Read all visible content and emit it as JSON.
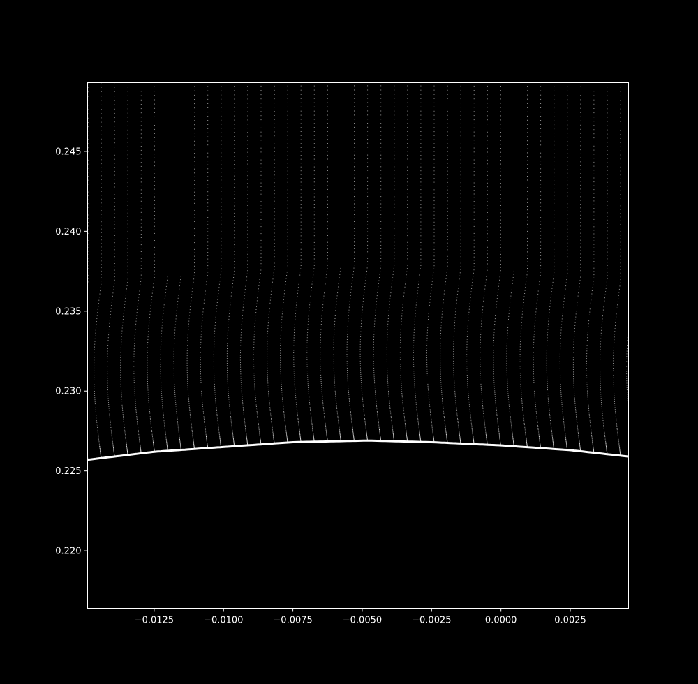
{
  "chart_data": {
    "type": "scatter",
    "title": "",
    "xlabel": "",
    "ylabel": "",
    "xlim": [
      -0.0149,
      0.0046
    ],
    "ylim": [
      0.2164,
      0.2493
    ],
    "grid": false,
    "background": "#000000",
    "foreground": "#ffffff",
    "point_color": "#d9d9d9",
    "x_ticks": [
      {
        "value": -0.0125,
        "label": "−0.0125"
      },
      {
        "value": -0.01,
        "label": "−0.0100"
      },
      {
        "value": -0.0075,
        "label": "−0.0075"
      },
      {
        "value": -0.005,
        "label": "−0.0050"
      },
      {
        "value": -0.0025,
        "label": "−0.0025"
      },
      {
        "value": 0.0,
        "label": "0.0000"
      },
      {
        "value": 0.0025,
        "label": "0.0025"
      }
    ],
    "y_ticks": [
      {
        "value": 0.22,
        "label": "0.220"
      },
      {
        "value": 0.225,
        "label": "0.225"
      },
      {
        "value": 0.23,
        "label": "0.230"
      },
      {
        "value": 0.235,
        "label": "0.235"
      },
      {
        "value": 0.24,
        "label": "0.240"
      },
      {
        "value": 0.245,
        "label": "0.245"
      }
    ],
    "lower_envelope": {
      "description_points": [
        {
          "x": -0.0149,
          "y": 0.2257
        },
        {
          "x": -0.0125,
          "y": 0.2262
        },
        {
          "x": -0.01,
          "y": 0.2265
        },
        {
          "x": -0.0075,
          "y": 0.2268
        },
        {
          "x": -0.0048,
          "y": 0.2269
        },
        {
          "x": -0.0025,
          "y": 0.2268
        },
        {
          "x": 0.0,
          "y": 0.2266
        },
        {
          "x": 0.0025,
          "y": 0.2263
        },
        {
          "x": 0.0046,
          "y": 0.2259
        }
      ]
    },
    "wave_x_period": 0.00048
  }
}
